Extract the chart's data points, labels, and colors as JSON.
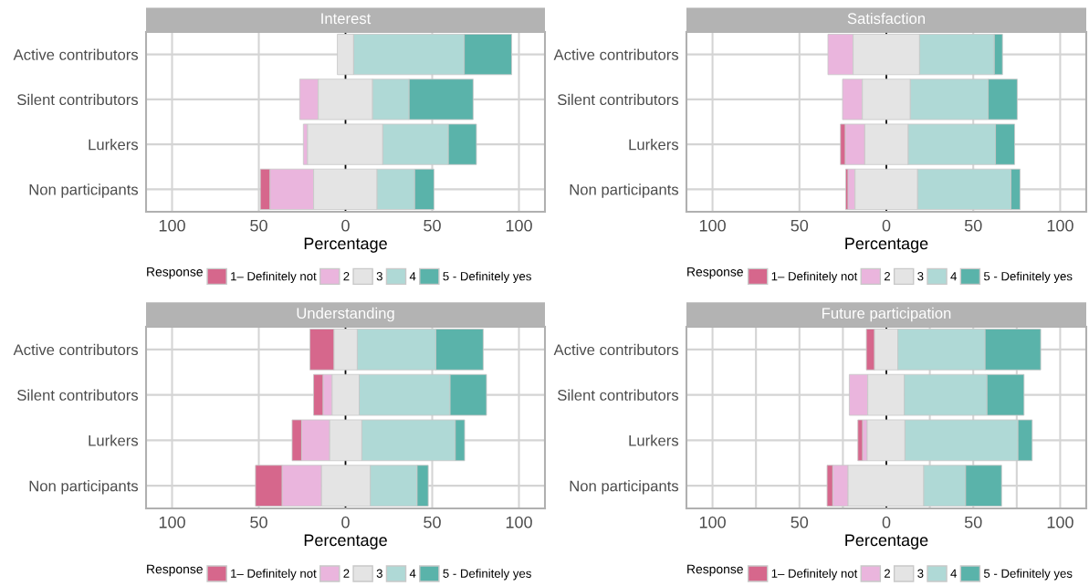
{
  "chart_data": [
    {
      "type": "bar",
      "title": "Interest",
      "orientation": "horizontal",
      "xlabel": "Percentage",
      "legend_title": "Response",
      "legend": "bottom",
      "grid": true,
      "categories": [
        "Active contributors",
        "Silent contributors",
        "Lurkers",
        "Non participants"
      ],
      "series": [
        {
          "name": "1– Definitely not",
          "color": "#d6678c",
          "values": [
            null,
            null,
            null,
            5.6
          ],
          "base": [
            null,
            null,
            null,
            -49.1
          ]
        },
        {
          "name": "2",
          "color": "#eab5dd",
          "values": [
            null,
            10.7,
            2.4,
            25.1
          ],
          "base": [
            null,
            -26.4,
            -24.3,
            -43.5
          ]
        },
        {
          "name": "3",
          "color": "#e4e4e4",
          "values": [
            9.4,
            31.3,
            43.4,
            36.6
          ],
          "base": [
            -4.7,
            -15.7,
            -21.9,
            -18.4
          ]
        },
        {
          "name": "4",
          "color": "#afd9d6",
          "values": [
            63.8,
            21.1,
            37.8,
            21.7
          ],
          "base": [
            4.7,
            15.6,
            21.5,
            18.2
          ]
        },
        {
          "name": "5 - Definitely yes",
          "color": "#5ab3aa",
          "values": [
            27.3,
            36.9,
            16.2,
            11.1
          ],
          "base": [
            68.5,
            36.7,
            59.3,
            39.9
          ]
        }
      ],
      "xlim": [
        -115,
        115
      ],
      "xticks": [
        {
          "value": -100,
          "label": "100"
        },
        {
          "value": -50,
          "label": "50"
        },
        0,
        50,
        100
      ],
      "ref_lines": [
        {
          "axis": "x",
          "value": 0,
          "color": "#000000"
        }
      ]
    },
    {
      "type": "bar",
      "title": "Satisfaction",
      "orientation": "horizontal",
      "xlabel": "Percentage",
      "legend_title": "Response",
      "legend": "bottom",
      "grid": true,
      "categories": [
        "Active contributors",
        "Silent contributors",
        "Lurkers",
        "Non participants"
      ],
      "series": [
        {
          "name": "1– Definitely not",
          "color": "#d6678c",
          "values": [
            null,
            null,
            2.8,
            1.4
          ],
          "base": [
            null,
            null,
            -26.4,
            -23.4
          ]
        },
        {
          "name": "2",
          "color": "#eab5dd",
          "values": [
            14.5,
            11.4,
            11.2,
            4.0
          ],
          "base": [
            -33.6,
            -25.2,
            -23.6,
            -22.0
          ]
        },
        {
          "name": "3",
          "color": "#e4e4e4",
          "values": [
            38.2,
            27.6,
            25.0,
            36.0
          ],
          "base": [
            -19.1,
            -13.8,
            -12.4,
            -18.0
          ]
        },
        {
          "name": "4",
          "color": "#afd9d6",
          "values": [
            43.0,
            44.8,
            50.2,
            53.7
          ],
          "base": [
            19.1,
            13.8,
            12.6,
            18.0
          ]
        },
        {
          "name": "5 - Definitely yes",
          "color": "#5ab3aa",
          "values": [
            4.7,
            16.7,
            11.0,
            5.2
          ],
          "base": [
            62.1,
            58.6,
            62.8,
            71.7
          ]
        }
      ],
      "xlim": [
        -115,
        115
      ],
      "xticks": [
        {
          "value": -100,
          "label": "100"
        },
        {
          "value": -50,
          "label": "50"
        },
        0,
        50,
        100
      ],
      "ref_lines": [
        {
          "axis": "x",
          "value": 0,
          "color": "#000000"
        }
      ]
    },
    {
      "type": "bar",
      "title": "Understanding",
      "orientation": "horizontal",
      "xlabel": "Percentage",
      "legend_title": "Response",
      "legend": "bottom",
      "grid": true,
      "categories": [
        "Active contributors",
        "Silent contributors",
        "Lurkers",
        "Non participants"
      ],
      "series": [
        {
          "name": "1– Definitely not",
          "color": "#d6678c",
          "values": [
            13.9,
            5.5,
            5.5,
            15.4
          ],
          "base": [
            -20.5,
            -18.4,
            -30.8,
            -51.9
          ]
        },
        {
          "name": "2",
          "color": "#eab5dd",
          "values": [
            null,
            5.2,
            16.2,
            22.7
          ],
          "base": [
            null,
            -12.9,
            -25.3,
            -36.5
          ]
        },
        {
          "name": "3",
          "color": "#e4e4e4",
          "values": [
            13.4,
            15.6,
            18.5,
            28.1
          ],
          "base": [
            -6.6,
            -7.7,
            -9.1,
            -13.8
          ]
        },
        {
          "name": "4",
          "color": "#afd9d6",
          "values": [
            45.3,
            52.4,
            53.9,
            27.0
          ],
          "base": [
            6.8,
            7.9,
            9.4,
            14.3
          ]
        },
        {
          "name": "5 - Definitely yes",
          "color": "#5ab3aa",
          "values": [
            27.3,
            21.0,
            5.4,
            6.4
          ],
          "base": [
            52.1,
            60.3,
            63.3,
            41.3
          ]
        }
      ],
      "xlim": [
        -115,
        115
      ],
      "xticks": [
        {
          "value": -100,
          "label": "100"
        },
        {
          "value": -50,
          "label": "50"
        },
        0,
        50,
        100
      ],
      "ref_lines": [
        {
          "axis": "x",
          "value": 0,
          "color": "#000000"
        }
      ]
    },
    {
      "type": "bar",
      "title": "Future participation",
      "orientation": "horizontal",
      "xlabel": "Percentage",
      "legend_title": "Response",
      "legend": "bottom",
      "grid": true,
      "categories": [
        "Active contributors",
        "Silent contributors",
        "Lurkers",
        "Non participants"
      ],
      "series": [
        {
          "name": "1– Definitely not",
          "color": "#d6678c",
          "values": [
            4.7,
            null,
            2.8,
            3.3
          ],
          "base": [
            -11.5,
            null,
            -16.4,
            -34.1
          ]
        },
        {
          "name": "2",
          "color": "#eab5dd",
          "values": [
            null,
            10.6,
            2.6,
            8.8
          ],
          "base": [
            null,
            -21.3,
            -13.6,
            -30.8
          ]
        },
        {
          "name": "3",
          "color": "#e4e4e4",
          "values": [
            13.4,
            21.0,
            21.7,
            43.5
          ],
          "base": [
            -6.8,
            -10.7,
            -11.0,
            -22.0
          ]
        },
        {
          "name": "4",
          "color": "#afd9d6",
          "values": [
            50.2,
            47.6,
            65.0,
            24.1
          ],
          "base": [
            6.6,
            10.3,
            10.7,
            21.5
          ]
        },
        {
          "name": "5 - Definitely yes",
          "color": "#5ab3aa",
          "values": [
            32.0,
            21.3,
            8.2,
            20.7
          ],
          "base": [
            56.8,
            57.9,
            75.7,
            45.6
          ]
        }
      ],
      "xlim": [
        -115,
        115
      ],
      "xticks": [
        {
          "value": -100,
          "label": "100"
        },
        {
          "value": -75,
          "label": null
        },
        {
          "value": -50,
          "label": "50"
        },
        {
          "value": -25,
          "label": null
        },
        0,
        {
          "value": 25,
          "label": null
        },
        50,
        {
          "value": 75,
          "label": null
        },
        100
      ],
      "ref_lines": [
        {
          "axis": "x",
          "value": 0,
          "color": "#000000"
        }
      ]
    }
  ]
}
